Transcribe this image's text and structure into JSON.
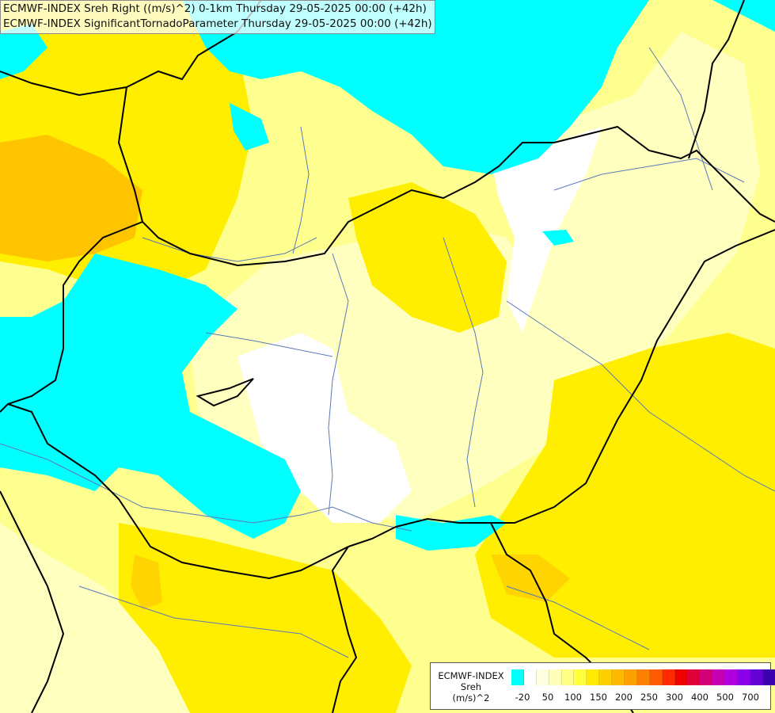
{
  "titles": {
    "line1": "ECMWF-INDEX Sreh Right ((m/s)^2) 0-1km Thursday 29-05-2025 00:00 (+42h)",
    "line2": "ECMWF-INDEX SignificantTornadoParameter Thursday 29-05-2025 00:00 (+42h)"
  },
  "legend": {
    "model": "ECMWF-INDEX",
    "variable": "Sreh",
    "unit": "(m/s)^2",
    "colors": [
      "#00ffff",
      "#ffffff",
      "#ffffe0",
      "#ffffb8",
      "#ffff88",
      "#ffff3c",
      "#ffea00",
      "#ffd000",
      "#ffb800",
      "#ffa000",
      "#ff8000",
      "#ff5a00",
      "#ff2a00",
      "#ee0000",
      "#e00038",
      "#d40078",
      "#c800b4",
      "#b000e0",
      "#8a00e8",
      "#6400d4",
      "#3c00b0",
      "#10008c",
      "#000070"
    ],
    "ticks": [
      "-20",
      "50",
      "100",
      "150",
      "200",
      "250",
      "300",
      "400",
      "500",
      "700"
    ]
  },
  "colors": {
    "cyan": "#00ffff",
    "white": "#ffffff",
    "pale": "#ffffc0",
    "light_yellow": "#ffff88",
    "yellow": "#ffee00",
    "gold": "#ffd400",
    "orange": "#ffc000",
    "border": "#000000",
    "river": "#5a7ab8"
  }
}
